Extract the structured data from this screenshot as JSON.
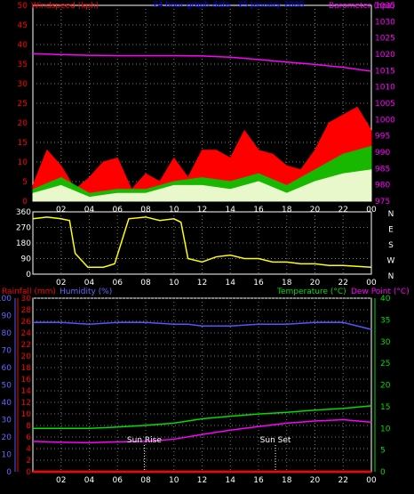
{
  "chart_data": [
    {
      "type": "area",
      "name": "wind-barometer",
      "title": "24 hour graph data : 25 January 2008",
      "ylabel_left": "Windspeed (kph)",
      "ylabel_right": "Barometer (hpa)",
      "x_ticks": [
        "02",
        "04",
        "06",
        "08",
        "10",
        "12",
        "14",
        "16",
        "18",
        "20",
        "22",
        "00"
      ],
      "y_ticks_left": [
        "0",
        "5",
        "10",
        "15",
        "20",
        "25",
        "30",
        "35",
        "40",
        "45",
        "50"
      ],
      "y_ticks_right": [
        "975",
        "980",
        "985",
        "990",
        "995",
        "1000",
        "1005",
        "1010",
        "1015",
        "1020",
        "1025",
        "1030",
        "1035"
      ],
      "ylim_left": [
        0,
        50
      ],
      "ylim_right": [
        975,
        1035
      ],
      "series": [
        {
          "color": "#ff0000",
          "x": [
            0,
            1,
            2,
            3,
            4,
            5,
            6,
            7,
            8,
            9,
            10,
            11,
            12,
            13,
            14,
            15,
            16,
            17,
            18,
            19,
            20,
            21,
            22,
            23,
            24
          ],
          "values": [
            4,
            13,
            9,
            3,
            6,
            10,
            11,
            3,
            7,
            5,
            11,
            6,
            13,
            13,
            11,
            18,
            13,
            12,
            9,
            8,
            13,
            20,
            22,
            24,
            18
          ]
        },
        {
          "color": "#00cc00",
          "x": [
            0,
            2,
            4,
            6,
            8,
            10,
            12,
            14,
            16,
            18,
            20,
            22,
            24
          ],
          "values": [
            3,
            6,
            2,
            3,
            3,
            5,
            6,
            5,
            7,
            4,
            8,
            12,
            14
          ]
        },
        {
          "color": "#ffffe0",
          "x": [
            0,
            2,
            4,
            6,
            8,
            10,
            12,
            14,
            16,
            18,
            20,
            22,
            24
          ],
          "values": [
            2,
            4,
            1,
            2,
            2,
            4,
            4,
            3,
            5,
            2,
            5,
            7,
            8
          ]
        },
        {
          "color": "#ff00ff",
          "x": [
            0,
            2,
            4,
            6,
            8,
            10,
            12,
            14,
            16,
            18,
            20,
            22,
            24
          ],
          "values": [
            1020.2,
            1019.9,
            1019.7,
            1019.6,
            1019.6,
            1019.6,
            1019.5,
            1019.1,
            1018.4,
            1017.6,
            1016.9,
            1016.0,
            1014.8
          ]
        }
      ]
    },
    {
      "type": "line",
      "name": "wind-direction",
      "x_ticks": [
        "02",
        "04",
        "06",
        "08",
        "10",
        "12",
        "14",
        "16",
        "18",
        "20",
        "22",
        "00"
      ],
      "y_ticks_left": [
        "0",
        "90",
        "180",
        "270",
        "360"
      ],
      "y_ticks_right": [
        "N",
        "W",
        "S",
        "E",
        "N"
      ],
      "ylim": [
        0,
        360
      ],
      "series": [
        {
          "color": "#ffff00",
          "x": [
            0,
            1,
            2,
            2.6,
            3,
            3.9,
            4.5,
            5,
            5.8,
            6.8,
            8,
            9,
            10,
            10.5,
            11,
            12,
            13,
            14,
            15,
            16,
            17,
            18,
            19,
            20,
            21,
            22,
            23,
            24
          ],
          "values": [
            320,
            330,
            320,
            310,
            120,
            40,
            40,
            40,
            60,
            320,
            330,
            310,
            320,
            300,
            90,
            70,
            100,
            110,
            90,
            90,
            70,
            70,
            60,
            60,
            50,
            50,
            45,
            40
          ]
        }
      ]
    },
    {
      "type": "line",
      "name": "temp-humidity-rain",
      "ylabel_left_1": "Rainfall (mm)",
      "ylabel_left_2": "Humidity (%)",
      "ylabel_right_1": "Temperature (°C)",
      "ylabel_right_2": "Dew Point (°C)",
      "x_ticks": [
        "02",
        "04",
        "06",
        "08",
        "10",
        "12",
        "14",
        "16",
        "18",
        "20",
        "22",
        "00"
      ],
      "x_ticks_extra": [
        "Sun Rise",
        "Sun Set"
      ],
      "y_ticks_humidity": [
        "0",
        "10",
        "20",
        "30",
        "40",
        "50",
        "60",
        "70",
        "80",
        "90",
        "100"
      ],
      "y_ticks_rain": [
        "0",
        "2",
        "4",
        "6",
        "8",
        "10",
        "12",
        "14",
        "16",
        "18",
        "20",
        "22",
        "24",
        "26",
        "28",
        "30"
      ],
      "y_ticks_temp": [
        "0",
        "5",
        "10",
        "15",
        "20",
        "25",
        "30",
        "35",
        "40"
      ],
      "ylim_humidity": [
        0,
        100
      ],
      "ylim_temp": [
        0,
        40
      ],
      "annotations": [
        {
          "text": "Sun Rise",
          "x": 7.9
        },
        {
          "text": "Sun Set",
          "x": 17.2
        }
      ],
      "series": [
        {
          "color": "#5555ff",
          "x": [
            0,
            2,
            4,
            6,
            8,
            10,
            11,
            12,
            13,
            14,
            16,
            18,
            20,
            22,
            24
          ],
          "values": [
            86,
            86,
            85,
            86,
            86,
            85,
            85,
            84,
            84,
            84,
            85,
            85,
            86,
            86,
            82
          ]
        },
        {
          "color": "#00dd00",
          "x": [
            0,
            2,
            4,
            6,
            8,
            10,
            12,
            14,
            16,
            18,
            20,
            22,
            24
          ],
          "values": [
            10,
            10,
            10,
            10.3,
            10.7,
            11.2,
            12.2,
            12.8,
            13.3,
            13.7,
            14.2,
            14.6,
            15.2
          ]
        },
        {
          "color": "#ff00ff",
          "x": [
            0,
            2,
            4,
            6,
            8,
            10,
            12,
            14,
            16,
            18,
            20,
            22,
            24
          ],
          "values": [
            7,
            6.8,
            6.7,
            6.9,
            7,
            7.5,
            8.6,
            9.6,
            10.4,
            11.2,
            11.7,
            12,
            11.4
          ]
        },
        {
          "color": "#ff0000",
          "x": [
            0,
            24
          ],
          "values": [
            0,
            0
          ]
        }
      ]
    }
  ]
}
